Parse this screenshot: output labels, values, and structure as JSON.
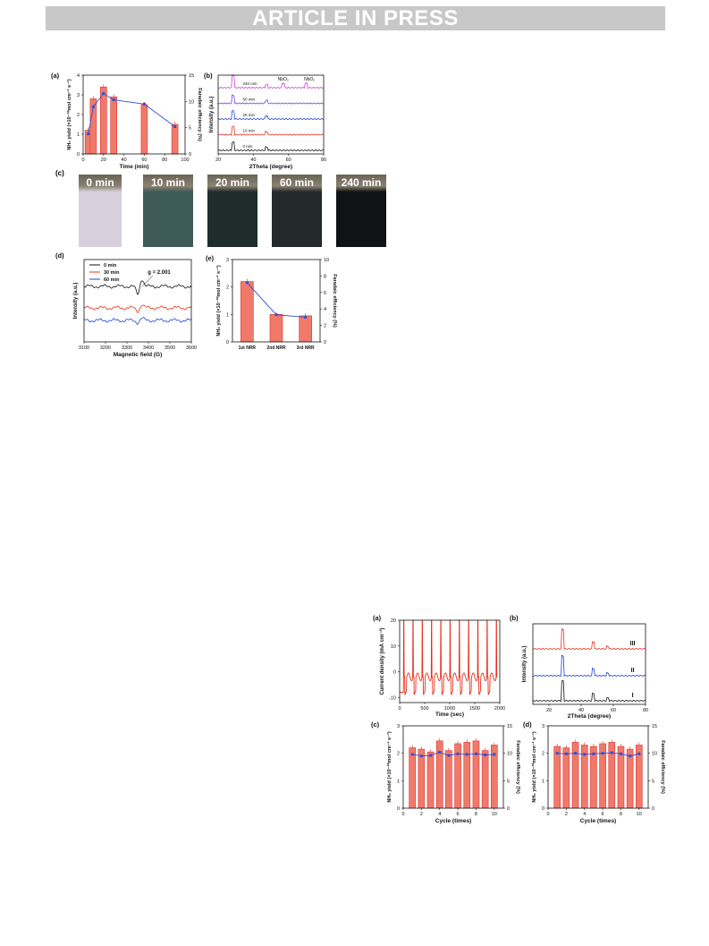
{
  "header": {
    "banner": "ARTICLE IN PRESS"
  },
  "figure1": {
    "panel_a": {
      "label": "(a)",
      "xlabel": "Time (min)",
      "ylabel_left": "NH₃ yield (×10⁻¹⁰mol cm⁻² s⁻¹)",
      "ylabel_right": "Faradaic efficiency (%)",
      "x_ticks": [
        "0",
        "20",
        "40",
        "60",
        "80",
        "100"
      ],
      "y_left_ticks": [
        "0",
        "1",
        "2",
        "3",
        "4"
      ],
      "y_right_ticks": [
        "0",
        "5",
        "10",
        "15"
      ],
      "chart_data": {
        "type": "bar",
        "x": [
          5,
          10,
          20,
          30,
          60,
          90
        ],
        "series": [
          {
            "values": [
              1.2,
              2.8,
              3.4,
              2.9,
              2.5,
              1.5
            ]
          },
          {
            "values": [
              3.8,
              9.0,
              11.5,
              10.3,
              9.5,
              5.2
            ]
          }
        ],
        "xlim": [
          0,
          100
        ],
        "ylim_left": [
          0,
          4
        ],
        "ylim_right": [
          0,
          15
        ]
      }
    },
    "panel_b": {
      "label": "(b)",
      "xlabel": "2Theta (degree)",
      "ylabel": "Intensity (a.u.)",
      "x_ticks": [
        "20",
        "40",
        "60",
        "80"
      ],
      "peak_labels": [
        "NbO₂",
        "NbO₂"
      ],
      "chart_data": {
        "type": "line",
        "xlim": [
          20,
          80
        ],
        "series": [
          {
            "name": "0 min",
            "color": "#111111"
          },
          {
            "name": "10 min",
            "color": "#e8301c"
          },
          {
            "name": "20 min",
            "color": "#1f3fd8"
          },
          {
            "name": "60 min",
            "color": "#6a3fe0"
          },
          {
            "name": "240 min",
            "color": "#cc44dd"
          }
        ],
        "peaks": [
          28.5,
          47.5,
          57.0,
          70.0
        ]
      }
    },
    "panel_c": {
      "label": "(c)",
      "photos": [
        {
          "caption": "0 min",
          "color": "#d8d0dc"
        },
        {
          "caption": "10 min",
          "color": "#3e5a56"
        },
        {
          "caption": "20 min",
          "color": "#1e2c2c"
        },
        {
          "caption": "60 min",
          "color": "#232a2a"
        },
        {
          "caption": "240 min",
          "color": "#101214"
        }
      ]
    },
    "panel_d": {
      "label": "(d)",
      "xlabel": "Magnetic field (G)",
      "ylabel": "Intensity (a.u.)",
      "annotation": "g = 2.001",
      "x_ticks": [
        "3100",
        "3200",
        "3300",
        "3400",
        "3500",
        "3600"
      ],
      "chart_data": {
        "type": "line",
        "xlim": [
          3100,
          3600
        ],
        "series": [
          {
            "name": "0 min",
            "color": "#111111"
          },
          {
            "name": "30 min",
            "color": "#e8301c"
          },
          {
            "name": "60 min",
            "color": "#1f3fd8"
          }
        ]
      }
    },
    "panel_e": {
      "label": "(e)",
      "ylabel_left": "NH₃ yield (×10⁻¹⁰mol cm⁻² s⁻¹)",
      "ylabel_right": "Faradaic efficiency (%)",
      "y_left_ticks": [
        "0",
        "1",
        "2",
        "3"
      ],
      "y_right_ticks": [
        "0",
        "2",
        "4",
        "6",
        "8",
        "10"
      ],
      "chart_data": {
        "type": "bar",
        "categories": [
          "1st NRR",
          "2nd NRR",
          "3rd NRR"
        ],
        "series": [
          {
            "values": [
              2.2,
              1.0,
              0.95
            ]
          },
          {
            "values": [
              7.2,
              3.3,
              3.0
            ]
          }
        ],
        "ylim_left": [
          0,
          3
        ],
        "ylim_right": [
          0,
          10
        ]
      }
    }
  },
  "figure2": {
    "panel_a": {
      "label": "(a)",
      "xlabel": "Time (sec)",
      "ylabel": "Current density (mA cm⁻²)",
      "x_ticks": [
        "0",
        "500",
        "1000",
        "1500",
        "2000"
      ],
      "y_ticks": [
        "-10",
        "0",
        "10",
        "20"
      ],
      "chart_data": {
        "type": "line",
        "xlim": [
          0,
          2000
        ],
        "ylim": [
          -12,
          20
        ],
        "cycles": 10,
        "color": "#e8301c"
      }
    },
    "panel_b": {
      "label": "(b)",
      "xlabel": "2Theta (degree)",
      "ylabel": "Intensity (a.u.)",
      "x_ticks": [
        "20",
        "40",
        "60",
        "80"
      ],
      "chart_data": {
        "type": "line",
        "xlim": [
          10,
          80
        ],
        "series": [
          {
            "name": "I",
            "color": "#111111"
          },
          {
            "name": "II",
            "color": "#1f3fd8"
          },
          {
            "name": "III",
            "color": "#e8301c"
          }
        ]
      }
    },
    "panel_c": {
      "label": "(c)",
      "xlabel": "Cycle (times)",
      "ylabel_left": "NH₃ yield (×10⁻¹⁰mol cm⁻² s⁻¹)",
      "ylabel_right": "Faradaic efficiency (%)",
      "x_ticks": [
        "0",
        "2",
        "4",
        "6",
        "8",
        "10"
      ],
      "y_left_ticks": [
        "0",
        "1",
        "2",
        "3"
      ],
      "y_right_ticks": [
        "0",
        "5",
        "10",
        "15"
      ],
      "chart_data": {
        "type": "bar",
        "x": [
          1,
          2,
          3,
          4,
          5,
          6,
          7,
          8,
          9,
          10
        ],
        "series": [
          {
            "values": [
              2.2,
              2.15,
              2.05,
              2.45,
              2.1,
              2.35,
              2.4,
              2.45,
              2.1,
              2.3
            ]
          },
          {
            "values": [
              9.8,
              9.5,
              9.6,
              10.2,
              9.6,
              9.9,
              9.8,
              9.9,
              9.7,
              9.8
            ]
          }
        ],
        "xlim": [
          0,
          11
        ],
        "ylim_left": [
          0,
          3
        ],
        "ylim_right": [
          0,
          15
        ]
      }
    },
    "panel_d": {
      "label": "(d)",
      "xlabel": "Cycle (times)",
      "ylabel_left": "NH₃ yield (×10⁻¹⁰mol cm⁻² s⁻¹)",
      "ylabel_right": "Faradaic efficiency (%)",
      "x_ticks": [
        "0",
        "2",
        "4",
        "6",
        "8",
        "10"
      ],
      "y_left_ticks": [
        "0",
        "1",
        "2",
        "3"
      ],
      "y_right_ticks": [
        "0",
        "5",
        "10",
        "15"
      ],
      "chart_data": {
        "type": "bar",
        "x": [
          1,
          2,
          3,
          4,
          5,
          6,
          7,
          8,
          9,
          10
        ],
        "series": [
          {
            "values": [
              2.25,
              2.2,
              2.4,
              2.3,
              2.25,
              2.35,
              2.4,
              2.25,
              2.15,
              2.3
            ]
          },
          {
            "values": [
              10.0,
              9.9,
              10.0,
              9.8,
              9.9,
              10.0,
              10.1,
              9.9,
              9.5,
              9.9
            ]
          }
        ],
        "xlim": [
          0,
          11
        ],
        "ylim_left": [
          0,
          3
        ],
        "ylim_right": [
          0,
          15
        ]
      }
    }
  }
}
